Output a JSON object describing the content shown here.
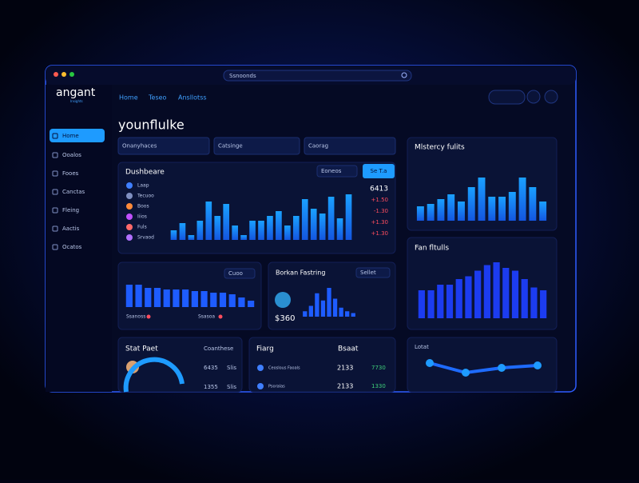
{
  "window": {
    "search": "Ssnoonds",
    "logo": "angant",
    "logo_sub": "Insights",
    "top_nav": [
      "Home",
      "Teseo",
      "Ansllotss"
    ],
    "side_nav": [
      "Home",
      "Ooalos",
      "Fooes",
      "Canctas",
      "Fleing",
      "Aactis",
      "Ocatos"
    ],
    "heading": "younflulke",
    "dropdowns": [
      "Onanyhaces",
      "Catsinge",
      "Caorag"
    ]
  },
  "main_panel": {
    "title": "Dushbeare",
    "select": "Eoneos",
    "button": "Se T.a",
    "list": [
      "Laap",
      "Tecuoo",
      "Boos",
      "Iiios",
      "Fuls",
      "Srvaod"
    ],
    "side_values": [
      "6413",
      "+1.50",
      "-1.30",
      "+1.30",
      "+1.30"
    ],
    "bars": [
      20,
      35,
      10,
      40,
      80,
      50,
      75,
      30,
      10,
      40,
      40,
      50,
      60,
      30,
      50,
      85,
      65,
      55,
      90,
      45,
      95
    ]
  },
  "mystery_panel": {
    "title": "Mlstercy fulits",
    "bars": [
      30,
      35,
      45,
      55,
      40,
      70,
      90,
      50,
      50,
      60,
      90,
      70,
      40
    ]
  },
  "fan_panel": {
    "title": "Fan fltulls",
    "bars": [
      50,
      50,
      60,
      60,
      70,
      75,
      85,
      95,
      100,
      90,
      85,
      70,
      55,
      50
    ]
  },
  "panel_a": {
    "select": "Cuoo",
    "labels": [
      "Ssanoss",
      "Ssasoa"
    ],
    "bars": [
      70,
      70,
      60,
      60,
      55,
      55,
      55,
      50,
      50,
      45,
      45,
      40,
      30,
      20
    ]
  },
  "panel_b": {
    "title": "Borkan Fastring",
    "select": "Sellet",
    "amount": "$360",
    "bars": [
      15,
      30,
      65,
      45,
      80,
      50,
      25,
      15,
      10
    ]
  },
  "stat_panel": {
    "title": "Stat Paet",
    "select": "Coanthese",
    "rows": [
      [
        "6435",
        "Slis"
      ],
      [
        "1355",
        "Slis"
      ]
    ]
  },
  "table_panel": {
    "headers": [
      "Fiarg",
      "Bsaat"
    ],
    "rows": [
      [
        "Ceoslous Faoals",
        "2133",
        "7730"
      ],
      [
        "Psoralas",
        "2133",
        "1330"
      ]
    ]
  },
  "line_panel": {
    "title": "Lotat",
    "values": [
      60,
      40,
      50,
      55
    ]
  }
}
